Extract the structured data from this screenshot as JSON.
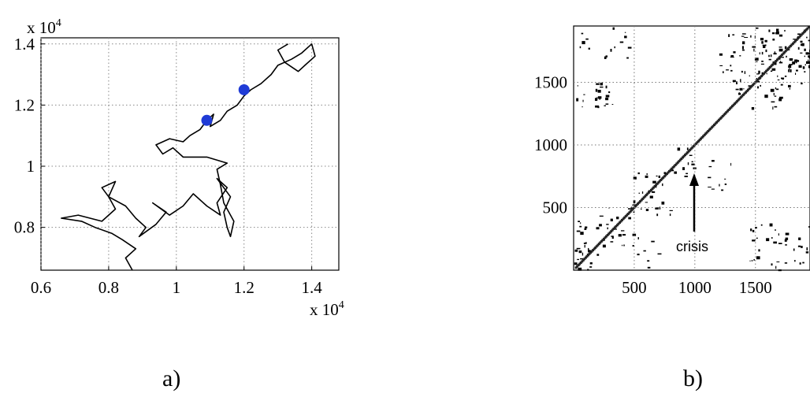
{
  "chart_data": [
    {
      "panel": "a",
      "type": "line",
      "caption": "a)",
      "x_multiplier_label": "x 10^4",
      "y_multiplier_label": "x 10^4",
      "xlim": [
        0.6,
        1.48
      ],
      "ylim": [
        0.66,
        1.42
      ],
      "xticks": [
        "0.6",
        "0.8",
        "1",
        "1.2",
        "1.4"
      ],
      "yticks": [
        "0.8",
        "1",
        "1.2",
        "1.4"
      ],
      "grid": true,
      "series": [
        {
          "color": "#000000",
          "points": [
            [
              0.87,
              0.66
            ],
            [
              0.85,
              0.7
            ],
            [
              0.88,
              0.73
            ],
            [
              0.84,
              0.76
            ],
            [
              0.81,
              0.78
            ],
            [
              0.76,
              0.8
            ],
            [
              0.72,
              0.82
            ],
            [
              0.66,
              0.83
            ],
            [
              0.71,
              0.84
            ],
            [
              0.78,
              0.82
            ],
            [
              0.82,
              0.86
            ],
            [
              0.8,
              0.9
            ],
            [
              0.78,
              0.93
            ],
            [
              0.82,
              0.95
            ],
            [
              0.8,
              0.9
            ],
            [
              0.85,
              0.87
            ],
            [
              0.88,
              0.83
            ],
            [
              0.91,
              0.8
            ],
            [
              0.89,
              0.77
            ],
            [
              0.94,
              0.81
            ],
            [
              0.97,
              0.85
            ],
            [
              0.93,
              0.88
            ],
            [
              0.98,
              0.84
            ],
            [
              1.02,
              0.87
            ],
            [
              1.05,
              0.91
            ],
            [
              1.09,
              0.87
            ],
            [
              1.13,
              0.84
            ],
            [
              1.12,
              0.88
            ],
            [
              1.15,
              0.93
            ],
            [
              1.12,
              0.96
            ],
            [
              1.16,
              0.9
            ],
            [
              1.14,
              0.85
            ],
            [
              1.15,
              0.8
            ],
            [
              1.16,
              0.77
            ],
            [
              1.17,
              0.82
            ],
            [
              1.14,
              0.88
            ],
            [
              1.13,
              0.94
            ],
            [
              1.12,
              0.99
            ],
            [
              1.15,
              1.01
            ],
            [
              1.09,
              1.03
            ],
            [
              1.02,
              1.03
            ],
            [
              0.99,
              1.06
            ],
            [
              0.96,
              1.04
            ],
            [
              0.94,
              1.07
            ],
            [
              0.98,
              1.09
            ],
            [
              1.02,
              1.08
            ],
            [
              1.04,
              1.1
            ],
            [
              1.07,
              1.12
            ],
            [
              1.09,
              1.15
            ],
            [
              1.11,
              1.17
            ],
            [
              1.1,
              1.13
            ],
            [
              1.13,
              1.15
            ],
            [
              1.15,
              1.18
            ],
            [
              1.18,
              1.2
            ],
            [
              1.2,
              1.23
            ],
            [
              1.22,
              1.25
            ],
            [
              1.25,
              1.27
            ],
            [
              1.28,
              1.3
            ],
            [
              1.3,
              1.33
            ],
            [
              1.34,
              1.35
            ],
            [
              1.37,
              1.37
            ],
            [
              1.4,
              1.4
            ],
            [
              1.41,
              1.36
            ],
            [
              1.38,
              1.33
            ],
            [
              1.36,
              1.31
            ],
            [
              1.32,
              1.34
            ],
            [
              1.3,
              1.38
            ],
            [
              1.33,
              1.4
            ]
          ]
        }
      ],
      "highlight_points": {
        "color": "#1f3bd6",
        "points": [
          [
            1.09,
            1.15
          ],
          [
            1.2,
            1.25
          ]
        ]
      }
    },
    {
      "panel": "b",
      "type": "heatmap",
      "caption": "b)",
      "xlim": [
        0,
        1950
      ],
      "ylim": [
        0,
        1950
      ],
      "xticks": [
        "500",
        "1000",
        "1500"
      ],
      "yticks": [
        "500",
        "1000",
        "1500"
      ],
      "grid": true,
      "annotation": {
        "text": "crisis",
        "arrow_tip": [
          1000,
          760
        ]
      }
    }
  ]
}
